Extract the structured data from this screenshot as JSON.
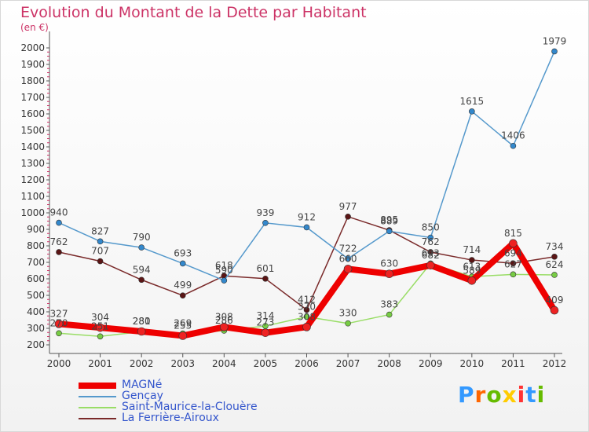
{
  "title": "Evolution du Montant de la Dette par Habitant",
  "subtitle": "(en €)",
  "logo": {
    "text": "Proxiti",
    "colors": [
      "#3399ff",
      "#ff6600",
      "#66bb00",
      "#ffcc00",
      "#ff3333",
      "#3399ff",
      "#66bb00"
    ]
  },
  "chart_data": {
    "type": "line",
    "title": "Evolution du Montant de la Dette par Habitant",
    "subtitle": "(en €)",
    "xlabel": "",
    "ylabel": "",
    "x": [
      "2000",
      "2001",
      "2002",
      "2003",
      "2004",
      "2005",
      "2006",
      "2007",
      "2008",
      "2009",
      "2010",
      "2011",
      "2012"
    ],
    "ylim": [
      200,
      2000
    ],
    "yticks": [
      200,
      300,
      400,
      500,
      600,
      700,
      800,
      900,
      1000,
      1100,
      1200,
      1300,
      1400,
      1500,
      1600,
      1700,
      1800,
      1900,
      2000
    ],
    "grid": false,
    "legend_position": "bottom-left",
    "series": [
      {
        "name": "La Ferrière-Airoux",
        "color": "#7a2a2a",
        "marker": "#5a1515",
        "values": [
          762,
          707,
          594,
          499,
          618,
          601,
          412,
          977,
          895,
          762,
          714,
          694,
          734
        ]
      },
      {
        "name": "Saint-Maurice-la-Clouère",
        "color": "#99dd66",
        "marker": "#77cc44",
        "values": [
          270,
          251,
          280,
          269,
          286,
          314,
          370,
          330,
          383,
          693,
          613,
          627,
          624
        ]
      },
      {
        "name": "Gençay",
        "color": "#5599cc",
        "marker": "#3388cc",
        "values": [
          940,
          827,
          790,
          693,
          590,
          939,
          912,
          722,
          889,
          850,
          1615,
          1406,
          1979
        ]
      },
      {
        "name": "MAGNé",
        "color": "#ee0000",
        "marker": "#ee2222",
        "values": [
          327,
          304,
          281,
          255,
          308,
          273,
          308,
          660,
          630,
          682,
          589,
          815,
          409
        ]
      }
    ],
    "legend_order": [
      "MAGNé",
      "Gençay",
      "Saint-Maurice-la-Clouère",
      "La Ferrière-Airoux"
    ]
  }
}
